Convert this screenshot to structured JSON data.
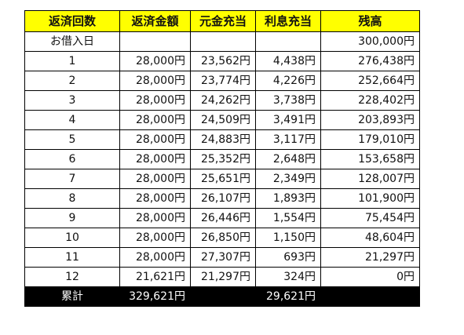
{
  "headers": [
    "返済回数",
    "返済金額",
    "元金充当",
    "利息充当",
    "残高"
  ],
  "initial": {
    "label": "お借入日",
    "payment": "",
    "principal": "",
    "interest": "",
    "balance": "300,000円"
  },
  "rows": [
    {
      "no": "1",
      "payment": "28,000円",
      "principal": "23,562円",
      "interest": "4,438円",
      "balance": "276,438円"
    },
    {
      "no": "2",
      "payment": "28,000円",
      "principal": "23,774円",
      "interest": "4,226円",
      "balance": "252,664円"
    },
    {
      "no": "3",
      "payment": "28,000円",
      "principal": "24,262円",
      "interest": "3,738円",
      "balance": "228,402円"
    },
    {
      "no": "4",
      "payment": "28,000円",
      "principal": "24,509円",
      "interest": "3,491円",
      "balance": "203,893円"
    },
    {
      "no": "5",
      "payment": "28,000円",
      "principal": "24,883円",
      "interest": "3,117円",
      "balance": "179,010円"
    },
    {
      "no": "6",
      "payment": "28,000円",
      "principal": "25,352円",
      "interest": "2,648円",
      "balance": "153,658円"
    },
    {
      "no": "7",
      "payment": "28,000円",
      "principal": "25,651円",
      "interest": "2,349円",
      "balance": "128,007円"
    },
    {
      "no": "8",
      "payment": "28,000円",
      "principal": "26,107円",
      "interest": "1,893円",
      "balance": "101,900円"
    },
    {
      "no": "9",
      "payment": "28,000円",
      "principal": "26,446円",
      "interest": "1,554円",
      "balance": "75,454円"
    },
    {
      "no": "10",
      "payment": "28,000円",
      "principal": "26,850円",
      "interest": "1,150円",
      "balance": "48,604円"
    },
    {
      "no": "11",
      "payment": "28,000円",
      "principal": "27,307円",
      "interest": "693円",
      "balance": "21,297円"
    },
    {
      "no": "12",
      "payment": "21,621円",
      "principal": "21,297円",
      "interest": "324円",
      "balance": "0円"
    }
  ],
  "total": {
    "label": "累計",
    "payment": "329,621円",
    "principal": "",
    "interest": "29,621円",
    "balance": ""
  },
  "colors": {
    "header_background": "#ffff00",
    "total_background": "#000000",
    "total_text": "#ffffff"
  }
}
